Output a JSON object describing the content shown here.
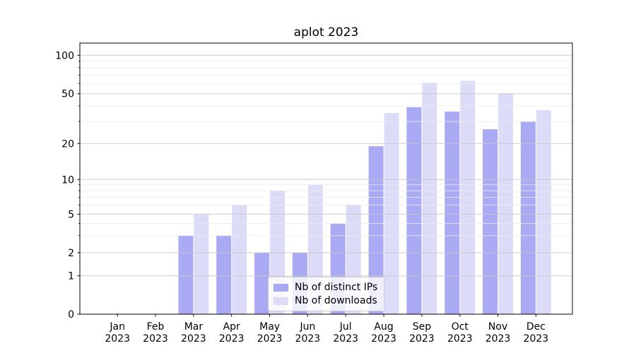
{
  "window": {
    "background": "#ffffff"
  },
  "chart_data": {
    "type": "bar",
    "title": "aplot 2023",
    "categories": [
      "Jan 2023",
      "Feb 2023",
      "Mar 2023",
      "Apr 2023",
      "May 2023",
      "Jun 2023",
      "Jul 2023",
      "Aug 2023",
      "Sep 2023",
      "Oct 2023",
      "Nov 2023",
      "Dec 2023"
    ],
    "series": [
      {
        "name": "Nb of distinct IPs",
        "color": "#a9a9f4",
        "values": [
          0,
          0,
          3,
          3,
          2,
          2,
          4,
          19,
          39,
          36,
          26,
          30
        ]
      },
      {
        "name": "Nb of downloads",
        "color": "#dcdcf9",
        "values": [
          0,
          0,
          5,
          6,
          8,
          9,
          6,
          35,
          61,
          63,
          50,
          37
        ]
      }
    ],
    "xlabel": "",
    "ylabel": "",
    "yscale": "symlog",
    "ylim": [
      0,
      125
    ],
    "yticks": [
      0,
      1,
      2,
      5,
      10,
      20,
      50,
      100
    ],
    "yticks_minor": [
      3,
      4,
      6,
      7,
      8,
      9,
      30,
      40,
      60,
      70,
      80,
      90
    ],
    "grid": true,
    "grid_major_color": "#c7c7c7",
    "grid_minor_color": "#ebebeb",
    "axis_color": "#000000",
    "legend_position": "lower center",
    "legend_background": "rgba(255,255,255,0.8)",
    "legend_border_color": "#cccccc"
  }
}
